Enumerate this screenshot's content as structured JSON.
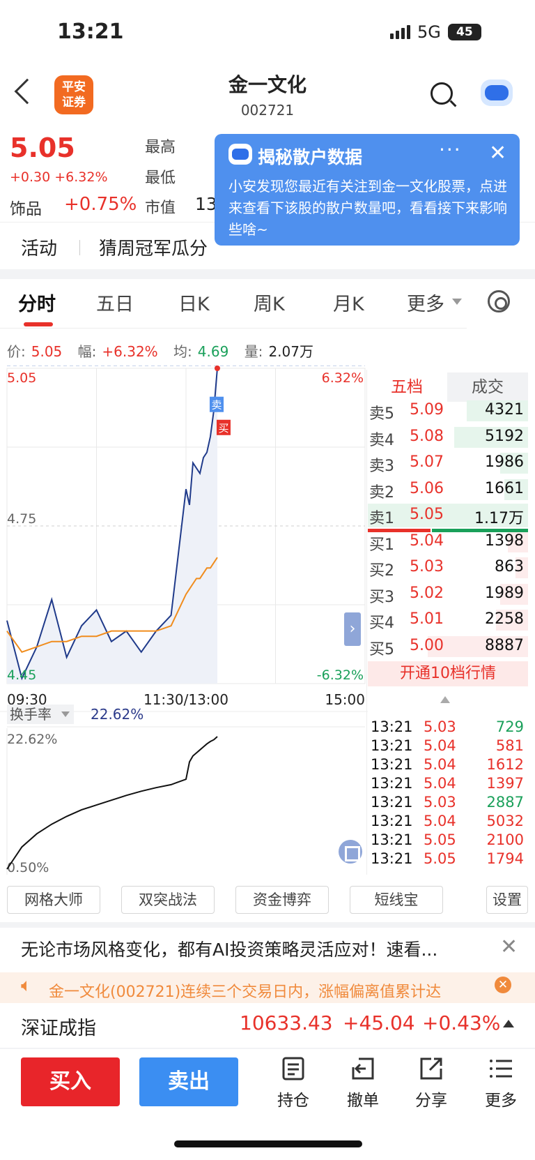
{
  "status": {
    "time": "13:21",
    "network": "5G",
    "battery": "45"
  },
  "header": {
    "logo_text": "平安\n证券",
    "title": "金一文化",
    "code": "002721"
  },
  "quote": {
    "price": "5.05",
    "change": "+0.30 +6.32%",
    "sector_name": "饰品",
    "sector_change": "+0.75%",
    "label_high": "最高",
    "label_low": "最低",
    "label_mcap": "市值",
    "mcap_partial": "13"
  },
  "popup": {
    "title": "揭秘散户数据",
    "more": "···",
    "close": "✕",
    "body": "小安发现您最近有关注到金一文化股票，点进来查看下该股的散户数量吧，看看接下来影响些啥~"
  },
  "activity": {
    "label": "活动",
    "text": "猜周冠军瓜分"
  },
  "tabs": [
    {
      "label": "分时"
    },
    {
      "label": "五日"
    },
    {
      "label": "日K"
    },
    {
      "label": "周K"
    },
    {
      "label": "月K"
    },
    {
      "label": "更多"
    }
  ],
  "info": {
    "price_label": "价:",
    "price": "5.05",
    "amp_label": "幅:",
    "amp": "+6.32%",
    "avg_label": "均:",
    "avg": "4.69",
    "vol_label": "量:",
    "vol": "2.07万"
  },
  "chart_data": [
    {
      "type": "line",
      "y_left_labels": [
        "5.05",
        "4.75",
        "4.45"
      ],
      "y_right_labels": [
        "6.32%",
        "-6.32%"
      ],
      "x_labels": [
        "09:30",
        "11:30/13:00",
        "15:00"
      ],
      "ylim": [
        4.45,
        5.05
      ],
      "trade_markers": [
        "卖",
        "买"
      ],
      "series": [
        {
          "name": "价",
          "color": "#1f3a8a",
          "x": [
            "09:30",
            "09:40",
            "09:50",
            "10:00",
            "10:10",
            "10:20",
            "10:30",
            "10:40",
            "10:50",
            "11:00",
            "11:10",
            "11:20",
            "11:30",
            "13:00",
            "13:10",
            "13:20",
            "13:30",
            "13:40",
            "13:50",
            "14:00",
            "14:10",
            "13:21"
          ],
          "values": [
            4.57,
            4.46,
            4.52,
            4.61,
            4.5,
            4.56,
            4.59,
            4.53,
            4.55,
            4.51,
            4.55,
            4.58,
            4.82,
            4.79,
            4.87,
            4.86,
            4.85,
            4.88,
            4.89,
            4.92,
            4.97,
            5.05
          ]
        },
        {
          "name": "均",
          "color": "#f08c1c",
          "x": [
            "09:30",
            "09:40",
            "09:50",
            "10:00",
            "10:10",
            "10:20",
            "10:30",
            "10:40",
            "10:50",
            "11:00",
            "11:10",
            "11:20",
            "11:30",
            "13:00",
            "13:10",
            "13:20",
            "13:30",
            "13:40",
            "13:50",
            "14:00",
            "14:10",
            "13:21"
          ],
          "values": [
            4.55,
            4.51,
            4.52,
            4.53,
            4.53,
            4.54,
            4.54,
            4.55,
            4.55,
            4.55,
            4.55,
            4.56,
            4.62,
            4.63,
            4.64,
            4.65,
            4.65,
            4.66,
            4.67,
            4.67,
            4.68,
            4.69
          ]
        }
      ]
    },
    {
      "type": "line",
      "title": "换手率",
      "current": "22.62%",
      "y_labels": [
        "22.62%",
        "0.50%"
      ],
      "ylim": [
        0.5,
        22.62
      ],
      "series": [
        {
          "name": "换手率",
          "color": "#111",
          "x": [
            "09:30",
            "09:40",
            "09:50",
            "10:00",
            "10:10",
            "10:20",
            "10:30",
            "10:40",
            "10:50",
            "11:00",
            "11:10",
            "11:20",
            "11:30",
            "13:00",
            "13:10",
            "13:20",
            "13:30",
            "13:40",
            "13:50",
            "14:00",
            "14:10",
            "13:21"
          ],
          "values": [
            0.5,
            4.2,
            6.4,
            8.0,
            9.3,
            10.4,
            11.2,
            12.0,
            12.8,
            13.5,
            14.1,
            14.6,
            15.5,
            18.4,
            19.4,
            19.9,
            20.4,
            20.9,
            21.4,
            21.8,
            22.1,
            22.62
          ]
        }
      ]
    }
  ],
  "orderbook": {
    "tab_levels": "五档",
    "tab_trades": "成交",
    "asks": [
      {
        "label": "卖5",
        "price": "5.09",
        "vol": "4321",
        "fill": 0.55
      },
      {
        "label": "卖4",
        "price": "5.08",
        "vol": "5192",
        "fill": 0.66
      },
      {
        "label": "卖3",
        "price": "5.07",
        "vol": "1986",
        "fill": 0.25
      },
      {
        "label": "卖2",
        "price": "5.06",
        "vol": "1661",
        "fill": 0.21
      },
      {
        "label": "卖1",
        "price": "5.05",
        "vol": "1.17万",
        "fill": 1.0
      }
    ],
    "bids": [
      {
        "label": "买1",
        "price": "5.04",
        "vol": "1398",
        "fill": 0.18
      },
      {
        "label": "买2",
        "price": "5.03",
        "vol": "863",
        "fill": 0.11
      },
      {
        "label": "买3",
        "price": "5.02",
        "vol": "1989",
        "fill": 0.25
      },
      {
        "label": "买4",
        "price": "5.01",
        "vol": "2258",
        "fill": 0.29
      },
      {
        "label": "买5",
        "price": "5.00",
        "vol": "8887",
        "fill": 0.9
      }
    ],
    "ten_level_label": "开通10档行情",
    "ticks": [
      {
        "time": "13:21",
        "price": "5.03",
        "vol": "729",
        "dir": "green"
      },
      {
        "time": "13:21",
        "price": "5.04",
        "vol": "581",
        "dir": "red"
      },
      {
        "time": "13:21",
        "price": "5.04",
        "vol": "1612",
        "dir": "red"
      },
      {
        "time": "13:21",
        "price": "5.04",
        "vol": "1397",
        "dir": "red"
      },
      {
        "time": "13:21",
        "price": "5.03",
        "vol": "2887",
        "dir": "green"
      },
      {
        "time": "13:21",
        "price": "5.04",
        "vol": "5032",
        "dir": "red"
      },
      {
        "time": "13:21",
        "price": "5.05",
        "vol": "2100",
        "dir": "red"
      },
      {
        "time": "13:21",
        "price": "5.05",
        "vol": "1794",
        "dir": "red"
      }
    ]
  },
  "tools": [
    {
      "label": "网格大师"
    },
    {
      "label": "双突战法"
    },
    {
      "label": "资金博弈"
    },
    {
      "label": "短线宝"
    },
    {
      "label": "设置"
    }
  ],
  "ad": {
    "text": "无论市场风格变化，都有AI投资策略灵活应对！速看...",
    "close": "✕"
  },
  "notice": {
    "text": "金一文化(002721)连续三个交易日内，涨幅偏离值累计达",
    "close": "✕"
  },
  "index": {
    "name": "深证成指",
    "value": "10633.43",
    "change": "+45.04",
    "pct": "+0.43%"
  },
  "bottom": {
    "buy": "买入",
    "sell": "卖出",
    "items": [
      {
        "label": "持仓"
      },
      {
        "label": "撤单"
      },
      {
        "label": "分享"
      },
      {
        "label": "更多"
      }
    ]
  }
}
